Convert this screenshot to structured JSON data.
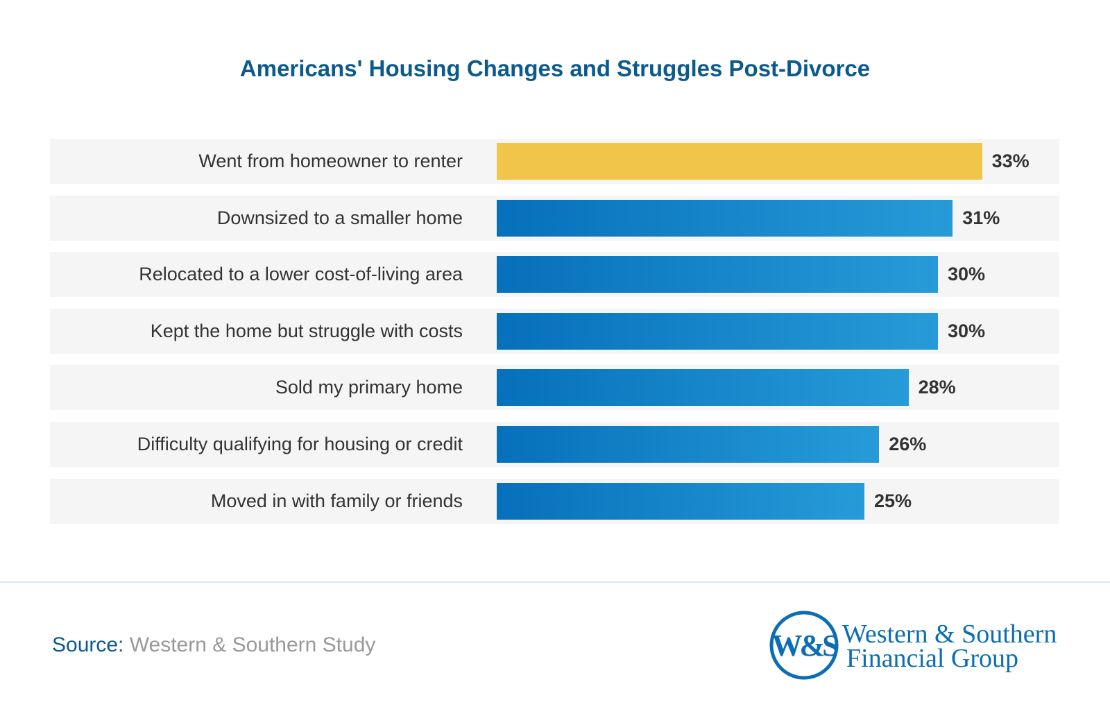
{
  "chart_data": {
    "type": "bar",
    "orientation": "horizontal",
    "title": "Americans' Housing Changes and Struggles Post-Divorce",
    "categories": [
      "Went from homeowner to renter",
      "Downsized to a smaller home",
      "Relocated to a lower cost-of-living area",
      "Kept the home but struggle with costs",
      "Sold my primary home",
      "Difficulty qualifying for housing or credit",
      "Moved in with family or friends"
    ],
    "values": [
      33,
      31,
      30,
      30,
      28,
      26,
      25
    ],
    "value_labels": [
      "33%",
      "31%",
      "30%",
      "30%",
      "28%",
      "26%",
      "25%"
    ],
    "unit": "%",
    "highlight_color": "#efc54a",
    "bar_color": "#0670bb",
    "grid": false
  },
  "footer": {
    "source_key": "Source:",
    "source_value": "Western & Southern Study"
  },
  "logo": {
    "monogram": "W&S",
    "line1": "Western & Southern",
    "line2": "Financial Group"
  }
}
